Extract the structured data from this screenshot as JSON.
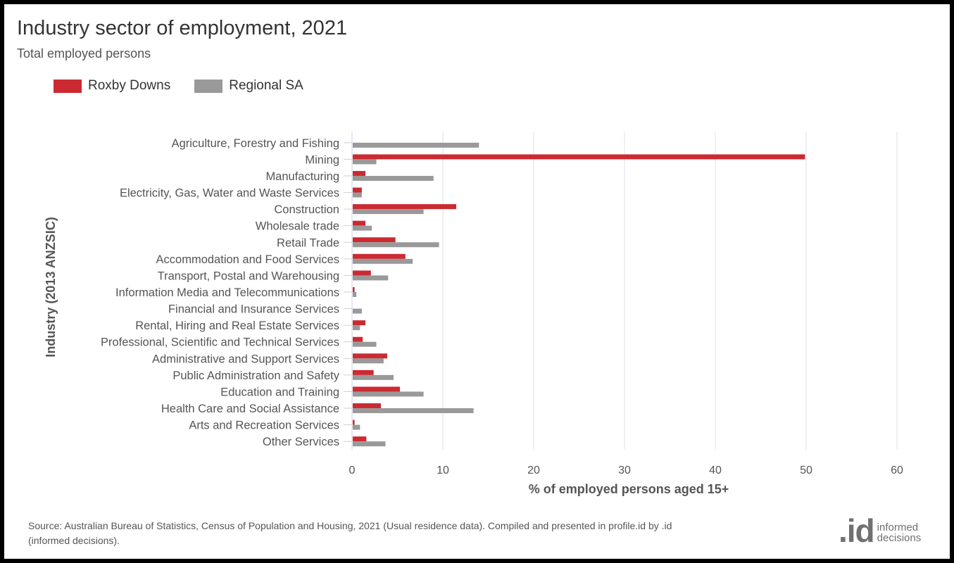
{
  "title": "Industry sector of employment, 2021",
  "subtitle": "Total employed persons",
  "source": "Source: Australian Bureau of Statistics, Census of Population and Housing, 2021 (Usual residence data). Compiled and presented in profile.id by .id (informed decisions).",
  "logo": {
    "mark": ".id",
    "line1": "informed",
    "line2": "decisions"
  },
  "colors": {
    "roxby": "#cc2a31",
    "regional": "#999999",
    "grid": "#dde2e8",
    "axis": "#c8d2de",
    "text": "#555555"
  },
  "chart_data": {
    "type": "bar",
    "orientation": "horizontal",
    "title": "Industry sector of employment, 2021",
    "subtitle": "Total employed persons",
    "xlabel": "% of employed persons aged 15+",
    "ylabel": "Industry (2013 ANZSIC)",
    "xlim": [
      0,
      60
    ],
    "xticks": [
      0,
      10,
      20,
      30,
      40,
      50,
      60
    ],
    "grid": true,
    "legend_position": "top-left",
    "categories": [
      "Agriculture, Forestry and Fishing",
      "Mining",
      "Manufacturing",
      "Electricity, Gas, Water and Waste Services",
      "Construction",
      "Wholesale trade",
      "Retail Trade",
      "Accommodation and Food Services",
      "Transport, Postal and Warehousing",
      "Information Media and Telecommunications",
      "Financial and Insurance Services",
      "Rental, Hiring and Real Estate Services",
      "Professional, Scientific and Technical Services",
      "Administrative and Support Services",
      "Public Administration and Safety",
      "Education and Training",
      "Health Care and Social Assistance",
      "Arts and Recreation Services",
      "Other Services"
    ],
    "series": [
      {
        "name": "Roxby Downs",
        "color": "#cc2a31",
        "values": [
          0,
          49.8,
          1.4,
          1.0,
          11.4,
          1.4,
          4.7,
          5.8,
          2.0,
          0.2,
          0,
          1.4,
          1.1,
          3.8,
          2.3,
          5.2,
          3.1,
          0.2,
          1.5
        ]
      },
      {
        "name": "Regional SA",
        "color": "#999999",
        "values": [
          13.9,
          2.6,
          8.9,
          1.0,
          7.8,
          2.1,
          9.5,
          6.6,
          3.9,
          0.4,
          1.0,
          0.8,
          2.6,
          3.4,
          4.5,
          7.8,
          13.3,
          0.8,
          3.6
        ]
      }
    ]
  }
}
